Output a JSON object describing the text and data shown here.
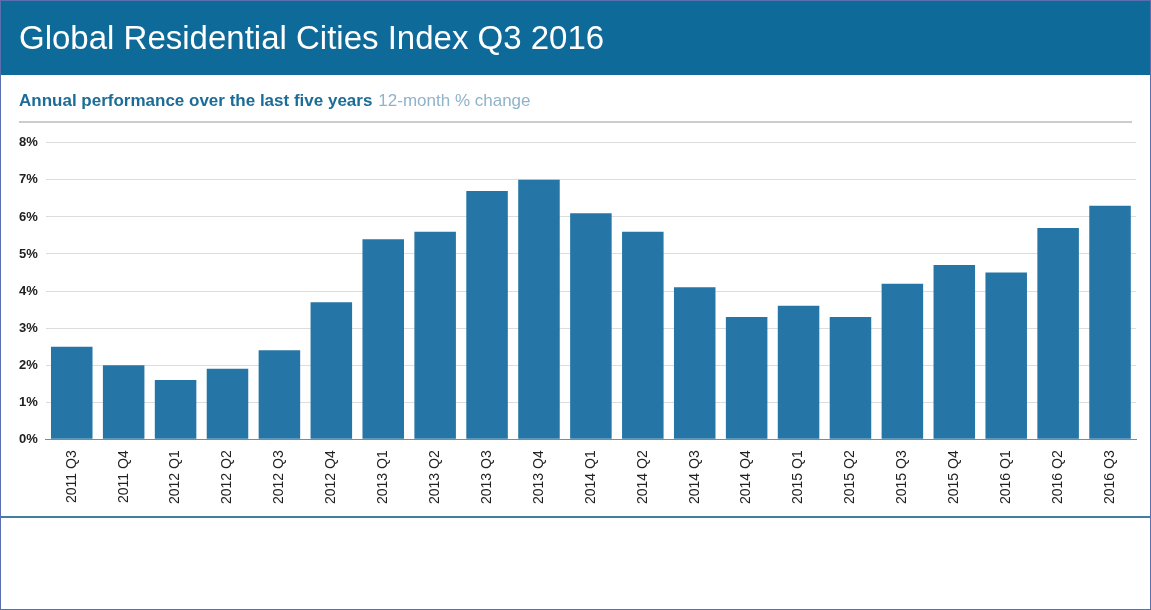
{
  "chart_data": {
    "type": "bar",
    "title": "Global Residential Cities Index Q3 2016",
    "subtitle": "Annual performance over the last five years",
    "ylabel": "12-month % change",
    "categories": [
      "2011 Q3",
      "2011 Q4",
      "2012 Q1",
      "2012 Q2",
      "2012 Q3",
      "2012 Q4",
      "2013 Q1",
      "2013 Q2",
      "2013 Q3",
      "2013 Q4",
      "2014 Q1",
      "2014 Q2",
      "2014 Q3",
      "2014 Q4",
      "2015 Q1",
      "2015 Q2",
      "2015 Q3",
      "2015 Q4",
      "2016 Q1",
      "2016 Q2",
      "2016 Q3"
    ],
    "values": [
      2.5,
      2.0,
      1.6,
      1.9,
      2.4,
      3.7,
      5.4,
      5.6,
      6.7,
      7.0,
      6.1,
      5.6,
      4.1,
      3.3,
      3.6,
      3.3,
      4.2,
      4.7,
      4.5,
      5.7,
      6.3
    ],
    "color": "#2576a6",
    "ylim": [
      0,
      8
    ],
    "yticks": [
      {
        "value": 0,
        "label": "0%"
      },
      {
        "value": 1,
        "label": "1%"
      },
      {
        "value": 2,
        "label": "2%"
      },
      {
        "value": 3,
        "label": "3%"
      },
      {
        "value": 4,
        "label": "4%"
      },
      {
        "value": 5,
        "label": "5%"
      },
      {
        "value": 6,
        "label": "6%"
      },
      {
        "value": 7,
        "label": "7%"
      },
      {
        "value": 8,
        "label": "8%"
      }
    ],
    "grid": "y"
  }
}
